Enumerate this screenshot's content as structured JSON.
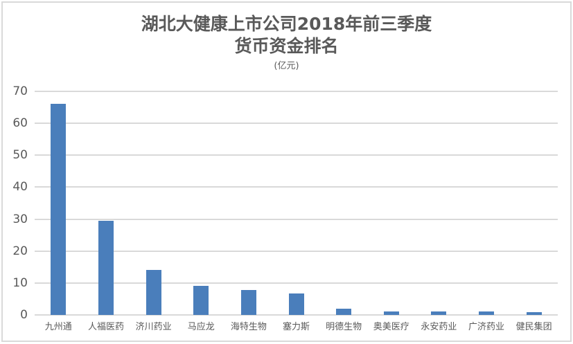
{
  "title": {
    "line1": "湖北大健康上市公司2018年前三季度",
    "line2": "货币资金排名",
    "unit": "(亿元)"
  },
  "colors": {
    "bar": "#4a7ebb",
    "grid": "#d9d9d9",
    "text": "#595959",
    "frame": "#d9d9d9"
  },
  "chart_data": {
    "type": "bar",
    "title": "湖北大健康上市公司2018年前三季度货币资金排名",
    "subtitle": "(亿元)",
    "xlabel": "",
    "ylabel": "",
    "ylim": [
      0,
      70
    ],
    "yticks": [
      0,
      10,
      20,
      30,
      40,
      50,
      60,
      70
    ],
    "ytick_labels": [
      "0",
      "10",
      "20",
      "30",
      "40",
      "50",
      "60",
      "70"
    ],
    "grid": true,
    "legend": null,
    "categories": [
      "九州通",
      "人福医药",
      "济川药业",
      "马应龙",
      "海特生物",
      "塞力斯",
      "明德生物",
      "奥美医疗",
      "永安药业",
      "广济药业",
      "健民集团"
    ],
    "values": [
      66.2,
      29.5,
      14.1,
      9.1,
      7.8,
      6.7,
      2.0,
      1.1,
      1.1,
      1.1,
      0.9
    ]
  }
}
